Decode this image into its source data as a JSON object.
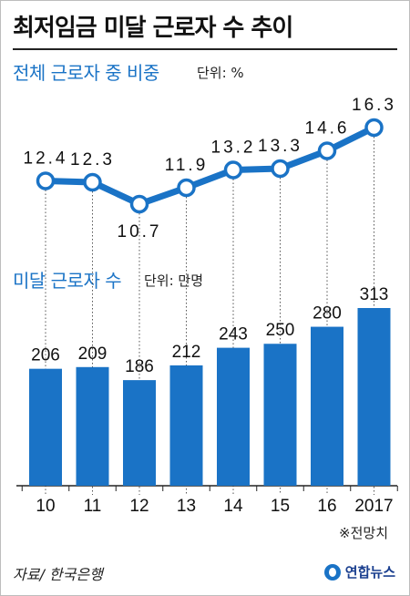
{
  "title": "최저임금 미달 근로자 수 추이",
  "line_panel": {
    "title": "전체 근로자 중 비중",
    "unit": "단위: %"
  },
  "bar_panel": {
    "title": "미달 근로자 수",
    "unit": "단위: 만명"
  },
  "note": "※전망치",
  "source": "자료/ 한국은행",
  "logo_text": "연합뉴스",
  "colors": {
    "accent": "#1a73c6",
    "bar": "#1a73c6",
    "line": "#1a73c6"
  },
  "chart_data": [
    {
      "type": "line",
      "categories": [
        "10",
        "11",
        "12",
        "13",
        "14",
        "15",
        "16",
        "2017"
      ],
      "values": [
        12.4,
        12.3,
        10.7,
        11.9,
        13.2,
        13.3,
        14.6,
        16.3
      ],
      "value_labels": [
        "12.4",
        "12.3",
        "10.7",
        "11.9",
        "13.2",
        "13.3",
        "14.6",
        "16.3"
      ],
      "ylabel": "단위: %"
    },
    {
      "type": "bar",
      "categories": [
        "10",
        "11",
        "12",
        "13",
        "14",
        "15",
        "16",
        "2017"
      ],
      "values": [
        206,
        209,
        186,
        212,
        243,
        250,
        280,
        313
      ],
      "ylabel": "단위: 만명"
    }
  ]
}
